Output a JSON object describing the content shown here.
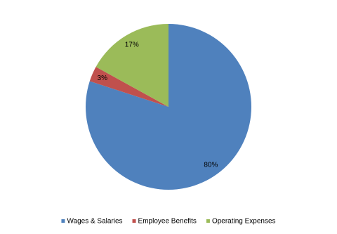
{
  "chart_data": {
    "type": "pie",
    "categories": [
      "Wages & Salaries",
      "Employee Benefits",
      "Operating Expenses"
    ],
    "values": [
      80,
      3,
      17
    ],
    "value_labels": [
      "80%",
      "3%",
      "17%"
    ],
    "colors": [
      "#4f81bd",
      "#c0504d",
      "#9bbb59"
    ],
    "legend": "bottom"
  }
}
